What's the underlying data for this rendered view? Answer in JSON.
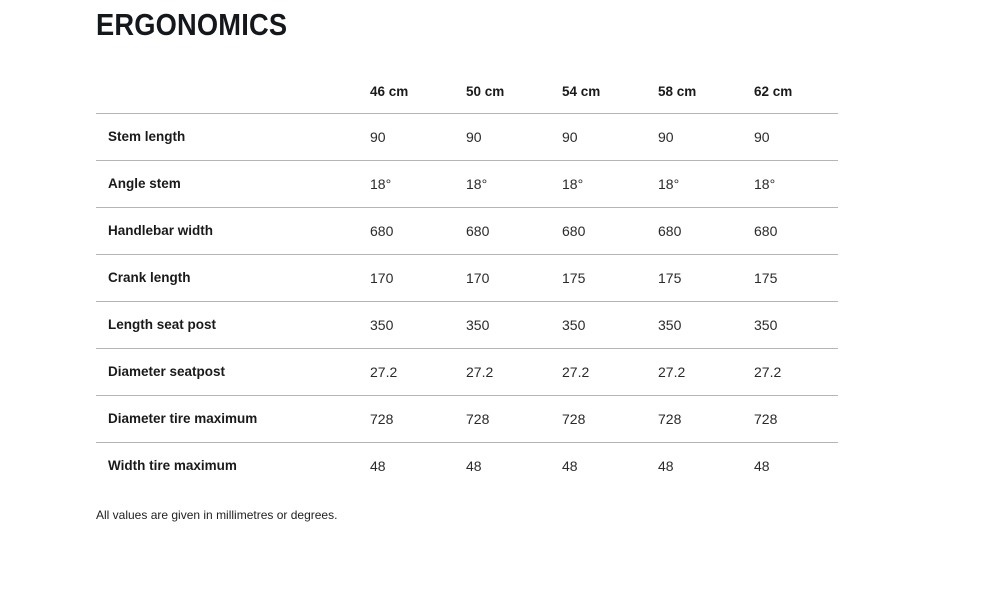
{
  "page": {
    "title": "ERGONOMICS",
    "footnote": "All values are given in millimetres or degrees."
  },
  "colors": {
    "text": "#1a1a1a",
    "title": "#14171c",
    "divider": "#b5b5b5",
    "background": "#ffffff"
  },
  "table": {
    "columns": [
      "46 cm",
      "50 cm",
      "54 cm",
      "58 cm",
      "62 cm"
    ],
    "rows": [
      {
        "label": "Stem length",
        "values": [
          "90",
          "90",
          "90",
          "90",
          "90"
        ]
      },
      {
        "label": "Angle stem",
        "values": [
          "18°",
          "18°",
          "18°",
          "18°",
          "18°"
        ]
      },
      {
        "label": "Handlebar width",
        "values": [
          "680",
          "680",
          "680",
          "680",
          "680"
        ]
      },
      {
        "label": "Crank length",
        "values": [
          "170",
          "170",
          "175",
          "175",
          "175"
        ]
      },
      {
        "label": "Length seat post",
        "values": [
          "350",
          "350",
          "350",
          "350",
          "350"
        ]
      },
      {
        "label": "Diameter seatpost",
        "values": [
          "27.2",
          "27.2",
          "27.2",
          "27.2",
          "27.2"
        ]
      },
      {
        "label": "Diameter tire maximum",
        "values": [
          "728",
          "728",
          "728",
          "728",
          "728"
        ]
      },
      {
        "label": "Width tire maximum",
        "values": [
          "48",
          "48",
          "48",
          "48",
          "48"
        ]
      }
    ]
  }
}
